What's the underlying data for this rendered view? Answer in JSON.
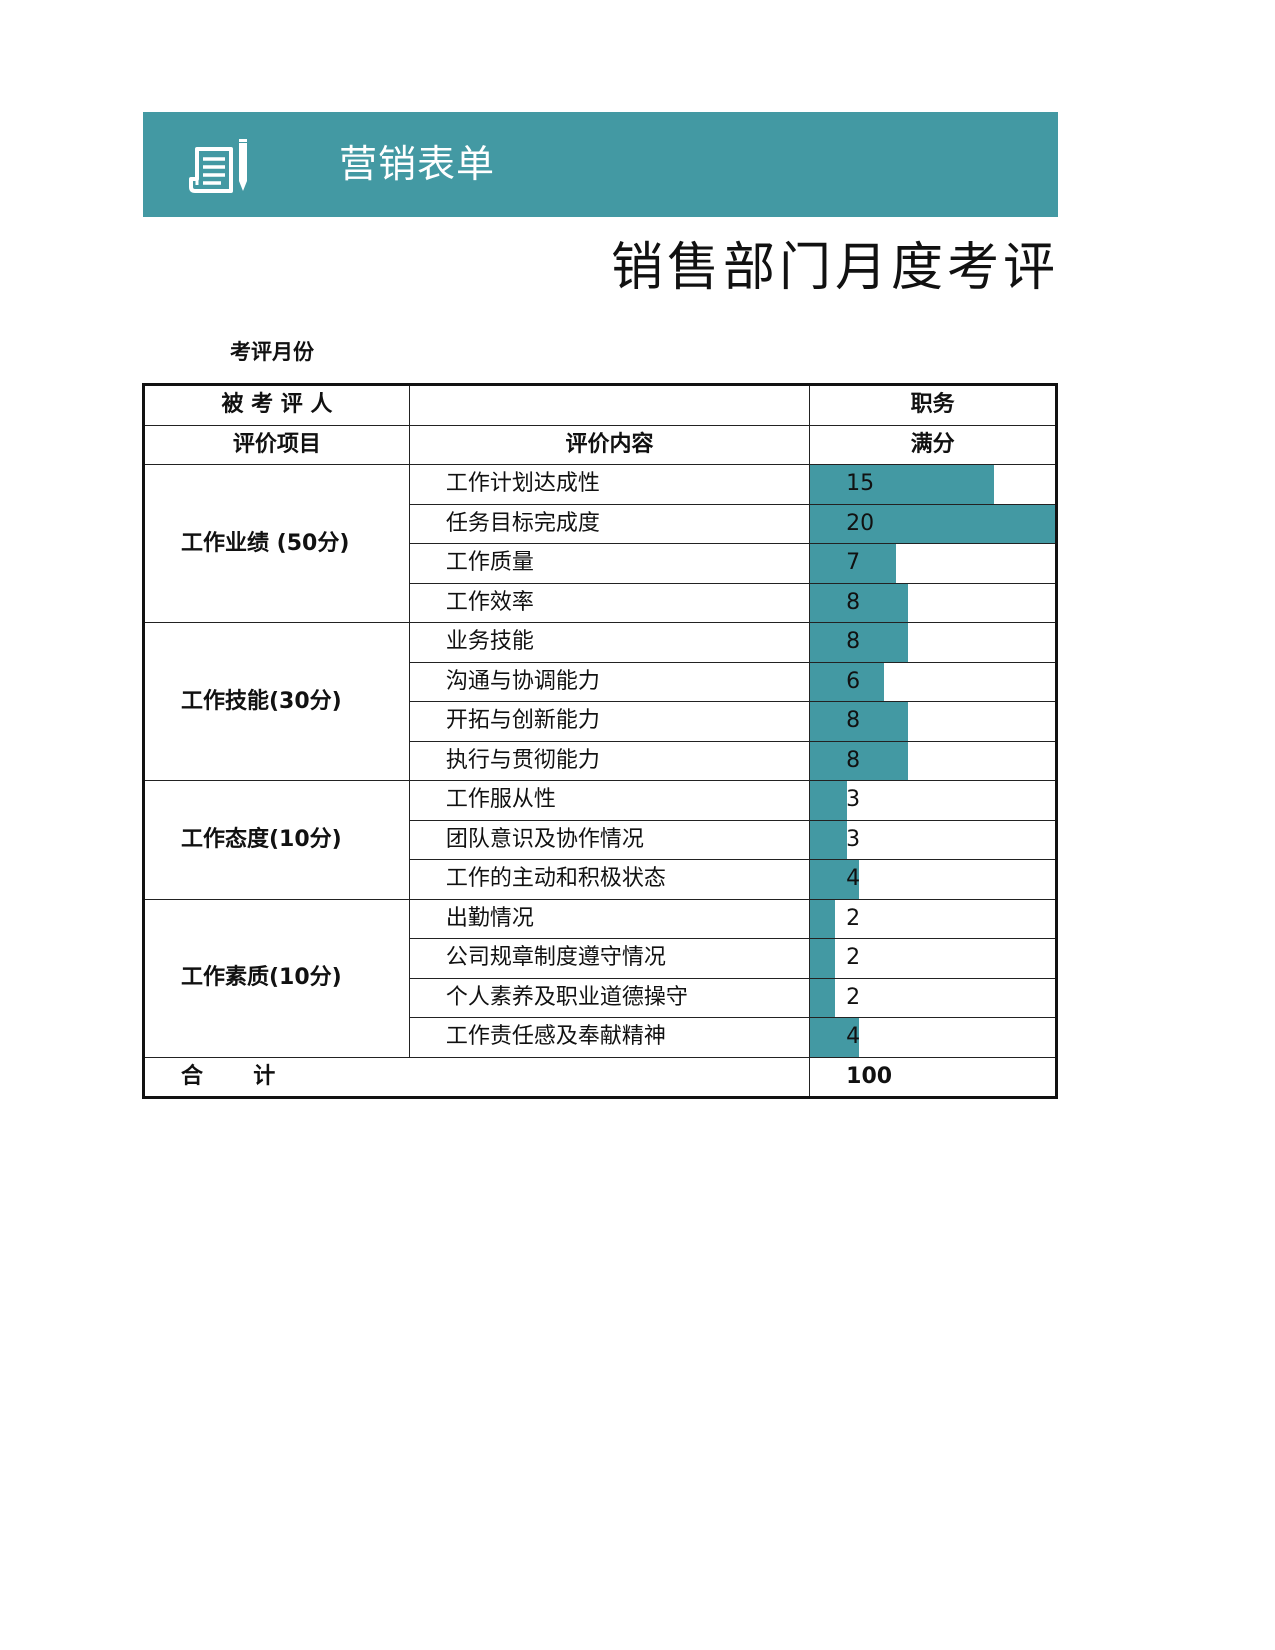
{
  "banner": {
    "icon": "form-pen-icon",
    "title": "营销表单",
    "color": "#4399a3"
  },
  "document_title": "销售部门月度考评表",
  "month_label": "考评月份",
  "table": {
    "header": {
      "evaluee_label": "被 考 评 人",
      "evaluee_value": "",
      "position_label": "职务"
    },
    "subheader": {
      "item_label": "评价项目",
      "content_label": "评价内容",
      "score_label": "满分"
    },
    "categories": [
      {
        "name": "工作业绩 (50分)",
        "items": [
          {
            "content": "工作计划达成性",
            "score": 15
          },
          {
            "content": "任务目标完成度",
            "score": 20
          },
          {
            "content": "工作质量",
            "score": 7
          },
          {
            "content": "工作效率",
            "score": 8
          }
        ]
      },
      {
        "name": "工作技能(30分)",
        "items": [
          {
            "content": "业务技能",
            "score": 8
          },
          {
            "content": "沟通与协调能力",
            "score": 6
          },
          {
            "content": "开拓与创新能力",
            "score": 8
          },
          {
            "content": "执行与贯彻能力",
            "score": 8
          }
        ]
      },
      {
        "name": "工作态度(10分)",
        "items": [
          {
            "content": "工作服从性",
            "score": 3
          },
          {
            "content": "团队意识及协作情况",
            "score": 3
          },
          {
            "content": "工作的主动和积极状态",
            "score": 4
          }
        ]
      },
      {
        "name": "工作素质(10分)",
        "items": [
          {
            "content": "出勤情况",
            "score": 2
          },
          {
            "content": "公司规章制度遵守情况",
            "score": 2
          },
          {
            "content": "个人素养及职业道德操守",
            "score": 2
          },
          {
            "content": "工作责任感及奉献精神",
            "score": 4
          }
        ]
      }
    ],
    "total_label": "合     计",
    "total_value": "100",
    "bar_max": 20,
    "bar_color": "#4399a3"
  }
}
